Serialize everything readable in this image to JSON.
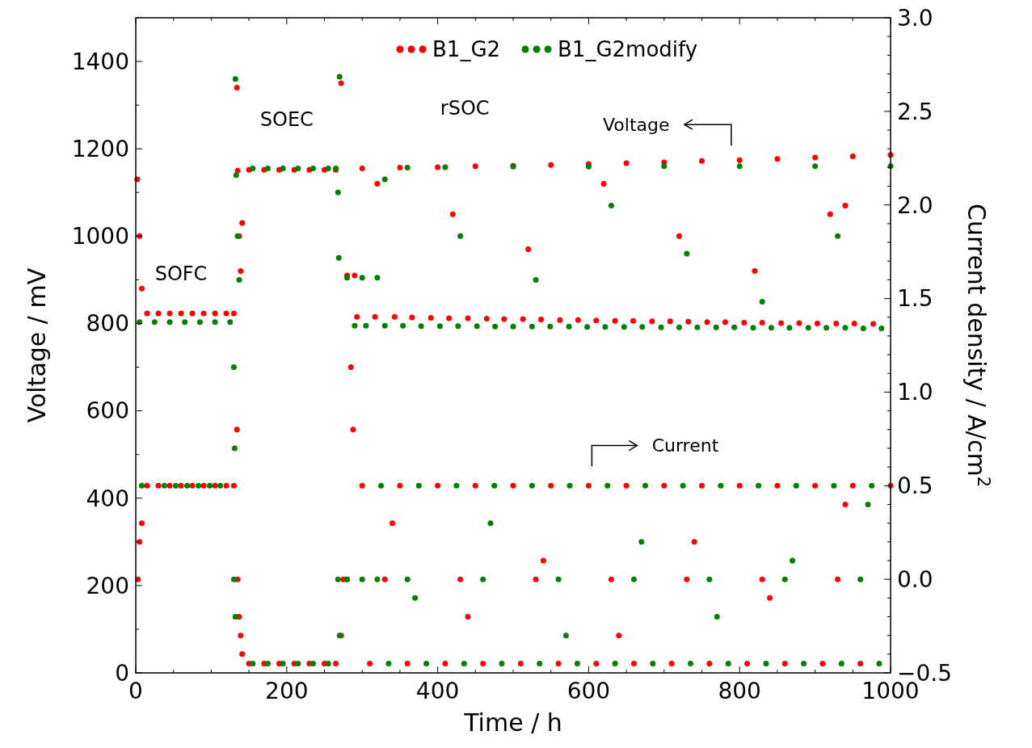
{
  "chart_data": {
    "type": "scatter",
    "xlabel": "Time / h",
    "ylabel": "Voltage / mV",
    "y2label": "Current density / A/cm$^{2}$",
    "xlim": [
      0,
      1000
    ],
    "xticks": [
      0,
      {
        "value": 50,
        "label": null
      },
      200,
      {
        "value": 100,
        "label": null
      },
      {
        "value": 150,
        "label": null
      },
      {
        "value": 250,
        "label": null
      },
      {
        "value": 300,
        "label": null
      },
      {
        "value": 350,
        "label": null
      },
      400,
      {
        "value": 450,
        "label": null
      },
      {
        "value": 500,
        "label": null
      },
      {
        "value": 550,
        "label": null
      },
      600,
      {
        "value": 650,
        "label": null
      },
      {
        "value": 700,
        "label": null
      },
      {
        "value": 750,
        "label": null
      },
      800,
      {
        "value": 850,
        "label": null
      },
      {
        "value": 900,
        "label": null
      },
      {
        "value": 950,
        "label": null
      },
      1000
    ],
    "ylim": [
      0,
      1500
    ],
    "yticks": [
      0,
      {
        "value": 100,
        "label": null
      },
      200,
      {
        "value": 300,
        "label": null
      },
      400,
      {
        "value": 500,
        "label": null
      },
      600,
      {
        "value": 700,
        "label": null
      },
      800,
      {
        "value": 900,
        "label": null
      },
      1000,
      {
        "value": 1100,
        "label": null
      },
      1200,
      {
        "value": 1300,
        "label": null
      },
      1400,
      {
        "value": 1500,
        "label": null
      }
    ],
    "y2lim": [
      -0.5,
      3.0
    ],
    "y2ticks": [
      {
        "value": -0.5,
        "label": "−0.5"
      },
      {
        "value": -0.4,
        "label": null
      },
      {
        "value": -0.3,
        "label": null
      },
      {
        "value": -0.2,
        "label": null
      },
      {
        "value": -0.1,
        "label": null
      },
      {
        "value": 0,
        "label": "0.0"
      },
      {
        "value": 0.1,
        "label": null
      },
      {
        "value": 0.2,
        "label": null
      },
      {
        "value": 0.3,
        "label": null
      },
      {
        "value": 0.4,
        "label": null
      },
      0.5,
      {
        "value": 0.6,
        "label": null
      },
      {
        "value": 0.7,
        "label": null
      },
      {
        "value": 0.8,
        "label": null
      },
      {
        "value": 0.9,
        "label": null
      },
      {
        "value": 1,
        "label": "1.0"
      },
      {
        "value": 1.1,
        "label": null
      },
      {
        "value": 1.2,
        "label": null
      },
      {
        "value": 1.3,
        "label": null
      },
      {
        "value": 1.4,
        "label": null
      },
      1.5,
      {
        "value": 1.6,
        "label": null
      },
      {
        "value": 1.7,
        "label": null
      },
      {
        "value": 1.8,
        "label": null
      },
      {
        "value": 1.9,
        "label": null
      },
      {
        "value": 2,
        "label": "2.0"
      },
      {
        "value": 2.1,
        "label": null
      },
      {
        "value": 2.2,
        "label": null
      },
      {
        "value": 2.3,
        "label": null
      },
      {
        "value": 2.4,
        "label": null
      },
      2.5,
      {
        "value": 2.6,
        "label": null
      },
      {
        "value": 2.7,
        "label": null
      },
      {
        "value": 2.8,
        "label": null
      },
      {
        "value": 2.9,
        "label": null
      },
      {
        "value": 3,
        "label": "3.0"
      }
    ],
    "grid": false,
    "legend": "top",
    "marker": "circle",
    "annotations": [
      "SOFC",
      "SOEC",
      "rSOC",
      "Voltage",
      "Current"
    ],
    "series": [
      {
        "name": "B1_G2",
        "color": "#ff0000",
        "x": [
          2,
          5,
          8,
          15,
          30,
          45,
          60,
          75,
          90,
          105,
          120,
          130,
          134,
          135,
          137,
          139,
          141,
          150,
          170,
          190,
          210,
          230,
          250,
          265,
          272,
          285,
          280,
          290,
          300,
          350,
          400,
          450,
          500,
          550,
          600,
          650,
          700,
          750,
          800,
          850,
          900,
          950,
          1000,
          293,
          317,
          343,
          366,
          391,
          415,
          440,
          465,
          488,
          513,
          537,
          562,
          586,
          610,
          635,
          659,
          684,
          708,
          732,
          757,
          781,
          806,
          830,
          855,
          879,
          903,
          928,
          952,
          977,
          320,
          420,
          520,
          620,
          720,
          820,
          920,
          940
        ],
        "values": [
          1130,
          1000,
          880,
          823,
          823,
          823,
          823,
          823,
          823,
          823,
          823,
          823,
          1340,
          1150,
          1000,
          920,
          1030,
          1152,
          1152,
          1152,
          1152,
          1152,
          1152,
          1152,
          1350,
          700,
          910,
          910,
          1155,
          1157,
          1158,
          1160,
          1161,
          1163,
          1165,
          1167,
          1169,
          1172,
          1174,
          1177,
          1180,
          1183,
          1186,
          815,
          815,
          815,
          814,
          813,
          812,
          812,
          811,
          810,
          810,
          809,
          808,
          808,
          807,
          806,
          806,
          805,
          805,
          804,
          803,
          803,
          802,
          802,
          801,
          801,
          800,
          800,
          800,
          799,
          1120,
          1050,
          970,
          1120,
          1000,
          920,
          1050,
          1070
        ]
      },
      {
        "name": "B1_G2modify",
        "color": "#008000",
        "x": [
          5,
          25,
          45,
          65,
          85,
          105,
          125,
          130,
          132,
          133,
          135,
          137,
          155,
          175,
          195,
          215,
          235,
          255,
          265,
          268,
          269,
          270,
          280,
          300,
          320,
          360,
          410,
          500,
          600,
          700,
          800,
          900,
          1000,
          290,
          305,
          330,
          354,
          378,
          403,
          427,
          452,
          476,
          500,
          525,
          549,
          574,
          598,
          622,
          647,
          671,
          696,
          720,
          744,
          769,
          793,
          818,
          842,
          866,
          891,
          915,
          940,
          964,
          988,
          330,
          430,
          530,
          630,
          730,
          830,
          930
        ],
        "values": [
          803,
          803,
          803,
          803,
          803,
          803,
          803,
          700,
          1360,
          1140,
          1000,
          900,
          1155,
          1155,
          1155,
          1155,
          1155,
          1155,
          1155,
          1100,
          950,
          1365,
          905,
          905,
          905,
          1157,
          1158,
          1159,
          1159,
          1160,
          1160,
          1160,
          1160,
          795,
          795,
          795,
          795,
          794,
          794,
          794,
          794,
          793,
          793,
          793,
          793,
          793,
          792,
          792,
          792,
          792,
          791,
          791,
          791,
          791,
          791,
          790,
          790,
          790,
          790,
          790,
          790,
          789,
          789,
          1130,
          1000,
          900,
          1070,
          960,
          850,
          1000
        ]
      },
      {
        "color": "#ff0000",
        "axis": "y2",
        "x": [
          3,
          5,
          8,
          15,
          30,
          45,
          60,
          75,
          90,
          105,
          120,
          130,
          134,
          135,
          137,
          139,
          141,
          150,
          170,
          190,
          210,
          230,
          250,
          265,
          272,
          275,
          280,
          288,
          300,
          350,
          400,
          450,
          500,
          550,
          600,
          650,
          700,
          750,
          800,
          850,
          900,
          950,
          1000,
          310,
          360,
          410,
          460,
          510,
          560,
          610,
          660,
          710,
          760,
          810,
          860,
          910,
          960,
          330,
          430,
          530,
          630,
          730,
          830,
          930,
          340,
          440,
          540,
          640,
          740,
          840,
          940
        ],
        "values": [
          0.0,
          0.2,
          0.3,
          0.5,
          0.5,
          0.5,
          0.5,
          0.5,
          0.5,
          0.5,
          0.5,
          0.5,
          0.8,
          0.0,
          -0.2,
          -0.3,
          -0.4,
          -0.45,
          -0.45,
          -0.45,
          -0.45,
          -0.45,
          -0.45,
          -0.45,
          -0.3,
          0.0,
          0.0,
          0.8,
          0.5,
          0.5,
          0.5,
          0.5,
          0.5,
          0.5,
          0.5,
          0.5,
          0.5,
          0.5,
          0.5,
          0.5,
          0.5,
          0.5,
          0.5,
          -0.45,
          -0.45,
          -0.45,
          -0.45,
          -0.45,
          -0.45,
          -0.45,
          -0.45,
          -0.45,
          -0.45,
          -0.45,
          -0.45,
          -0.45,
          -0.45,
          0.0,
          0.0,
          0.0,
          0.0,
          0.0,
          0.0,
          0.0,
          0.3,
          -0.2,
          0.1,
          -0.3,
          0.2,
          -0.1,
          0.4
        ]
      },
      {
        "color": "#008000",
        "axis": "y2",
        "x": [
          8,
          38,
          53,
          68,
          83,
          98,
          112,
          130,
          131,
          132,
          155,
          175,
          195,
          215,
          235,
          255,
          268,
          270,
          280,
          300,
          320,
          325,
          375,
          425,
          475,
          525,
          575,
          625,
          675,
          725,
          775,
          825,
          875,
          925,
          975,
          335,
          385,
          435,
          485,
          535,
          585,
          635,
          685,
          735,
          785,
          835,
          885,
          935,
          985,
          360,
          460,
          560,
          660,
          760,
          860,
          960,
          370,
          470,
          570,
          670,
          770,
          870,
          970
        ],
        "values": [
          0.5,
          0.5,
          0.5,
          0.5,
          0.5,
          0.5,
          0.5,
          0.0,
          0.7,
          -0.2,
          -0.45,
          -0.45,
          -0.45,
          -0.45,
          -0.45,
          -0.45,
          0.0,
          -0.3,
          0.0,
          0.0,
          0.0,
          0.5,
          0.5,
          0.5,
          0.5,
          0.5,
          0.5,
          0.5,
          0.5,
          0.5,
          0.5,
          0.5,
          0.5,
          0.5,
          0.5,
          -0.45,
          -0.45,
          -0.45,
          -0.45,
          -0.45,
          -0.45,
          -0.45,
          -0.45,
          -0.45,
          -0.45,
          -0.45,
          -0.45,
          -0.45,
          -0.45,
          0.0,
          0.0,
          0.0,
          0.0,
          0.0,
          0.0,
          0.0,
          -0.1,
          0.3,
          -0.3,
          0.2,
          -0.2,
          0.1,
          0.4
        ]
      }
    ]
  }
}
